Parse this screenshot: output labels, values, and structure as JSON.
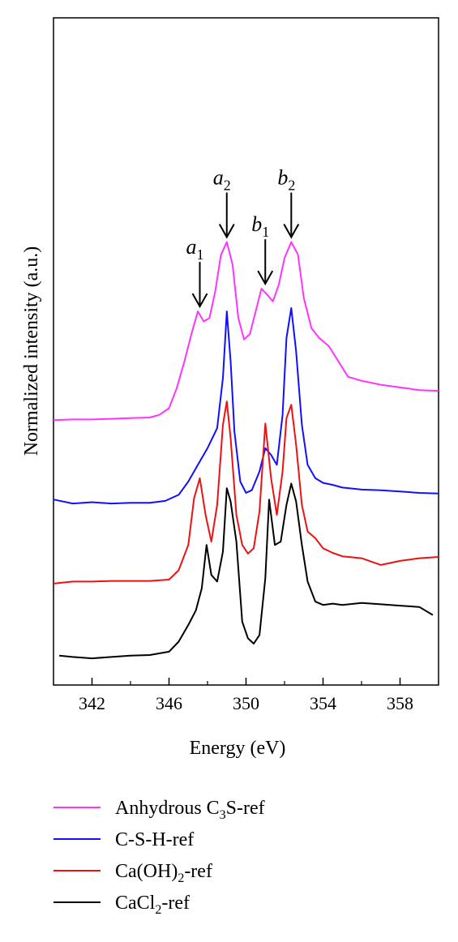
{
  "chart_data": {
    "type": "line",
    "xlabel": "Energy (eV)",
    "ylabel": "Normalized intensity (a.u.)",
    "xlim": [
      340,
      360
    ],
    "ylim": [
      0,
      10
    ],
    "x_ticks": [
      342,
      346,
      350,
      354,
      358
    ],
    "x_tick_labels": [
      "342",
      "346",
      "350",
      "354",
      "358"
    ],
    "grid": false,
    "legend_position": "bottom",
    "annotations": [
      {
        "base": "a",
        "sub": "1",
        "x": 347.6,
        "y": 5.6
      },
      {
        "base": "a",
        "sub": "2",
        "x": 349.0,
        "y": 6.64
      },
      {
        "base": "b",
        "sub": "1",
        "x": 351.0,
        "y": 5.94
      },
      {
        "base": "b",
        "sub": "2",
        "x": 352.35,
        "y": 6.64
      }
    ],
    "series": [
      {
        "name": "Anhydrous C3S-ref",
        "label_main": "Anhydrous C",
        "label_sub": "3",
        "label_tail": "S-ref",
        "color": "#ff33ff",
        "x": [
          340,
          341,
          342,
          343,
          344,
          345,
          345.5,
          346,
          346.4,
          346.8,
          347.2,
          347.5,
          347.8,
          348.1,
          348.4,
          348.7,
          349.0,
          349.3,
          349.6,
          349.9,
          350.2,
          350.5,
          350.8,
          351.1,
          351.4,
          351.7,
          352.0,
          352.35,
          352.7,
          353.0,
          353.4,
          353.8,
          354.3,
          354.8,
          355.3,
          356,
          357,
          358,
          359,
          360
        ],
        "y": [
          3.97,
          3.98,
          3.98,
          3.99,
          4.0,
          4.01,
          4.05,
          4.15,
          4.45,
          4.85,
          5.3,
          5.6,
          5.45,
          5.5,
          5.9,
          6.45,
          6.64,
          6.3,
          5.5,
          5.18,
          5.26,
          5.6,
          5.94,
          5.85,
          5.75,
          6.0,
          6.4,
          6.64,
          6.45,
          5.8,
          5.35,
          5.2,
          5.08,
          4.85,
          4.62,
          4.56,
          4.5,
          4.46,
          4.42,
          4.41
        ]
      },
      {
        "name": "C-S-H-ref",
        "label_main": "C-S-H-ref",
        "label_sub": "",
        "label_tail": "",
        "color": "#1010ff",
        "x": [
          340,
          341,
          342,
          343,
          344,
          345,
          345.8,
          346.5,
          347.0,
          347.5,
          348.0,
          348.5,
          348.8,
          349.0,
          349.2,
          349.4,
          349.7,
          350.0,
          350.3,
          350.7,
          351.0,
          351.3,
          351.6,
          351.9,
          352.1,
          352.35,
          352.6,
          352.9,
          353.2,
          353.6,
          354.0,
          354.5,
          355,
          356,
          357,
          358,
          359,
          360
        ],
        "y": [
          2.78,
          2.72,
          2.74,
          2.72,
          2.73,
          2.73,
          2.76,
          2.85,
          3.05,
          3.3,
          3.55,
          3.85,
          4.6,
          5.6,
          4.85,
          3.8,
          3.05,
          2.88,
          2.92,
          3.2,
          3.55,
          3.45,
          3.3,
          4.05,
          5.2,
          5.65,
          5.0,
          3.9,
          3.3,
          3.1,
          3.03,
          3.0,
          2.96,
          2.93,
          2.92,
          2.9,
          2.88,
          2.87
        ]
      },
      {
        "name": "Ca(OH)2-ref",
        "label_main": "Ca(OH)",
        "label_sub": "2",
        "label_tail": "-ref",
        "color": "#ee1111",
        "x": [
          340,
          341,
          342,
          343,
          344,
          345,
          346,
          346.5,
          347.0,
          347.3,
          347.6,
          347.9,
          348.2,
          348.5,
          348.8,
          349.0,
          349.2,
          349.5,
          349.8,
          350.1,
          350.4,
          350.7,
          351.0,
          351.3,
          351.6,
          351.9,
          352.1,
          352.35,
          352.6,
          352.9,
          353.2,
          353.6,
          354,
          354.5,
          355,
          356,
          357,
          358,
          359,
          360
        ],
        "y": [
          1.52,
          1.55,
          1.55,
          1.56,
          1.56,
          1.56,
          1.58,
          1.72,
          2.1,
          2.8,
          3.1,
          2.55,
          2.15,
          2.7,
          3.9,
          4.25,
          3.7,
          2.55,
          2.1,
          1.97,
          2.05,
          2.6,
          3.92,
          3.1,
          2.55,
          3.2,
          4.0,
          4.2,
          3.6,
          2.7,
          2.3,
          2.2,
          2.05,
          1.98,
          1.93,
          1.9,
          1.8,
          1.86,
          1.9,
          1.92
        ]
      },
      {
        "name": "CaCl2-ref",
        "label_main": "CaCl",
        "label_sub": "2",
        "label_tail": "-ref",
        "color": "#000000",
        "x": [
          340.3,
          341,
          342,
          343,
          344,
          345,
          346,
          346.5,
          347.0,
          347.4,
          347.7,
          347.95,
          348.2,
          348.5,
          348.8,
          349.0,
          349.2,
          349.5,
          349.8,
          350.1,
          350.4,
          350.7,
          351.0,
          351.2,
          351.5,
          351.8,
          352.1,
          352.35,
          352.6,
          352.9,
          353.2,
          353.6,
          354,
          354.5,
          355,
          356,
          357,
          358,
          359,
          359.7
        ],
        "y": [
          0.44,
          0.42,
          0.4,
          0.42,
          0.44,
          0.45,
          0.5,
          0.65,
          0.9,
          1.12,
          1.45,
          2.1,
          1.65,
          1.55,
          2.0,
          2.95,
          2.75,
          2.15,
          0.95,
          0.7,
          0.62,
          0.75,
          1.6,
          2.78,
          2.1,
          2.15,
          2.7,
          3.02,
          2.75,
          2.1,
          1.55,
          1.25,
          1.2,
          1.22,
          1.2,
          1.23,
          1.21,
          1.19,
          1.17,
          1.05
        ]
      }
    ]
  }
}
